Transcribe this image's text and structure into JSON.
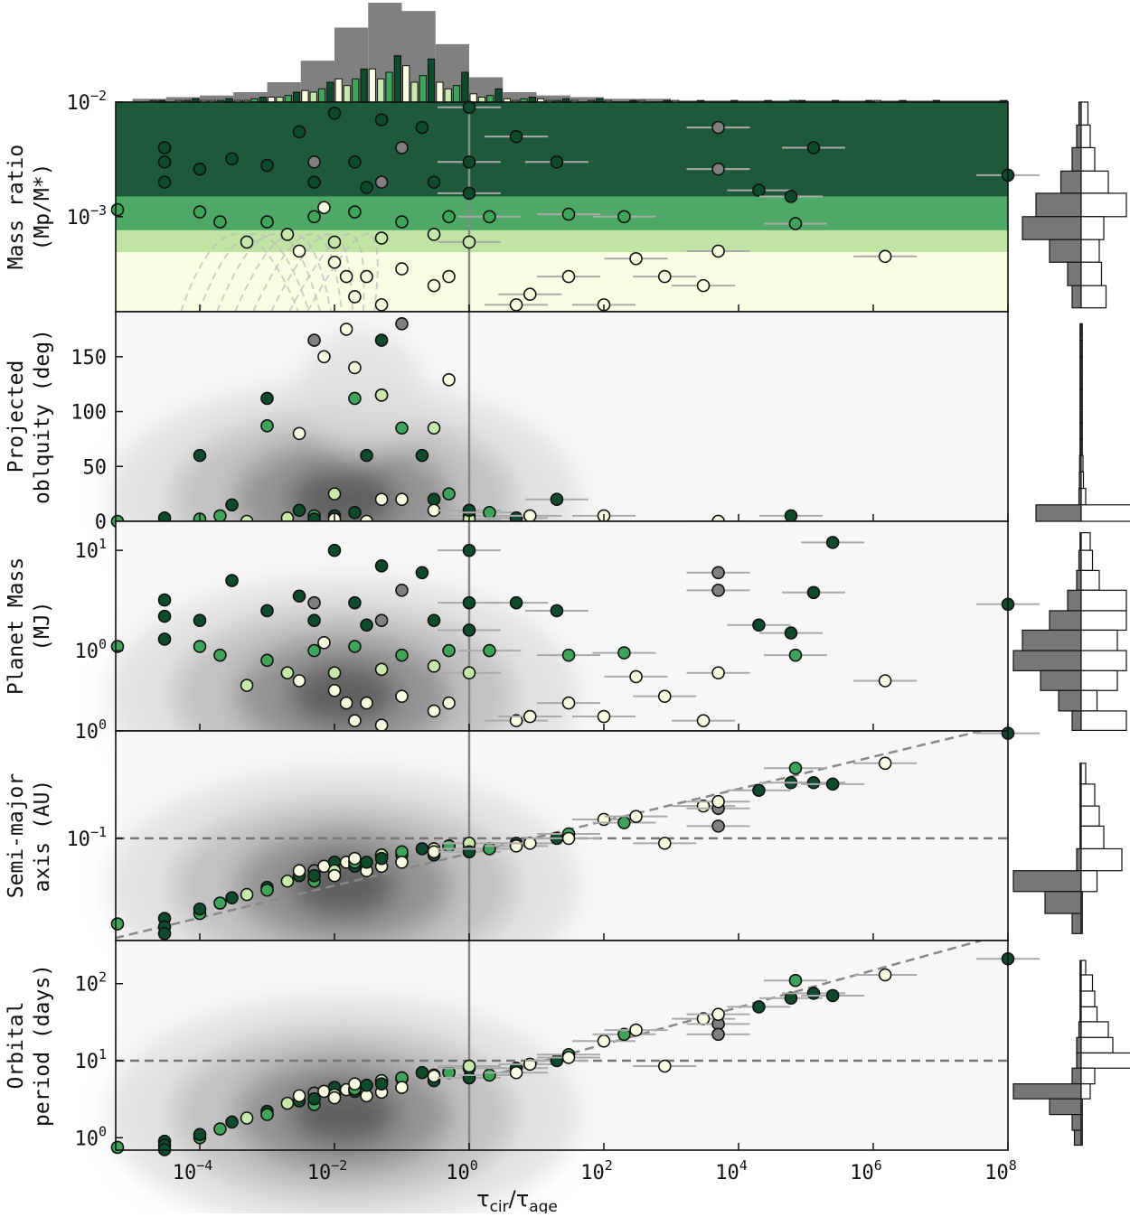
{
  "chart_data": {
    "type": "scatter",
    "x_axis": {
      "label": "τcir/τage",
      "label_main": "τ",
      "label_sub1": "cir",
      "label_mid": "/τ",
      "label_sub2": "age",
      "scale": "log",
      "range": [
        5.5e-06,
        100000000.0
      ],
      "ticks": [
        {
          "base": "10",
          "exp": "−4",
          "value": 0.0001
        },
        {
          "base": "10",
          "exp": "−2",
          "value": 0.01
        },
        {
          "base": "10",
          "exp": "0",
          "value": 1
        },
        {
          "base": "10",
          "exp": "2",
          "value": 100.0
        },
        {
          "base": "10",
          "exp": "4",
          "value": 10000.0
        },
        {
          "base": "10",
          "exp": "6",
          "value": 1000000.0
        },
        {
          "base": "10",
          "exp": "8",
          "value": 100000000.0
        }
      ]
    },
    "panels": [
      {
        "key": "q",
        "ylabel": [
          "Mass ratio",
          "(Mp/M*)"
        ],
        "scale": "log",
        "range": [
          0.000148,
          0.01
        ],
        "ticks": [
          {
            "base": "10",
            "exp": "−2",
            "value": 0.01
          },
          {
            "base": "10",
            "exp": "−3",
            "value": 0.001
          }
        ],
        "bands": [
          {
            "from": 0.0015,
            "to": 0.01,
            "color": "#1d5a3c"
          },
          {
            "from": 0.00076,
            "to": 0.0015,
            "color": "#4ea866"
          },
          {
            "from": 0.00049,
            "to": 0.00076,
            "color": "#bfe4a4"
          },
          {
            "from": 0.000148,
            "to": 0.00049,
            "color": "#fbfde2"
          }
        ]
      },
      {
        "key": "obl",
        "ylabel": [
          "Projected",
          "oblquity (deg)"
        ],
        "scale": "linear",
        "range": [
          0,
          191
        ],
        "ticks": [
          {
            "label": "150",
            "value": 150
          },
          {
            "label": "100",
            "value": 100
          },
          {
            "label": "50",
            "value": 50
          },
          {
            "label": "0",
            "value": 0
          }
        ]
      },
      {
        "key": "mass",
        "ylabel": [
          "Planet Mass",
          "(MJ)"
        ],
        "scale": "log",
        "range": [
          0.158,
          19.5
        ],
        "ticks": [
          {
            "base": "10",
            "exp": "1",
            "value": 10
          },
          {
            "base": "10",
            "exp": "0",
            "value": 1
          },
          {
            "base": "10",
            "exp": "0",
            "value": 0.158
          }
        ]
      },
      {
        "key": "a",
        "ylabel": [
          "Semi-major",
          "axis (AU)"
        ],
        "scale": "log",
        "range": [
          0.0112,
          1
        ],
        "ticks": [
          {
            "base": "10",
            "exp": "0",
            "value": 1
          },
          {
            "base": "10",
            "exp": "−1",
            "value": 0.1
          }
        ],
        "hline": 0.1,
        "trend": [
          [
            5.5e-06,
            0.0118
          ],
          [
            40000000.0,
            1
          ]
        ]
      },
      {
        "key": "P",
        "ylabel": [
          "Orbital",
          "period (days)"
        ],
        "scale": "log",
        "range": [
          0.69,
          363
        ],
        "ticks": [
          {
            "base": "10",
            "exp": "2",
            "value": 100
          },
          {
            "base": "10",
            "exp": "1",
            "value": 10
          },
          {
            "base": "10",
            "exp": "0",
            "value": 1
          }
        ],
        "hline": 10,
        "trend": [
          [
            3,
            7
          ],
          [
            40000000.0,
            363
          ]
        ]
      }
    ],
    "vline": 1,
    "group_colors": {
      "d": "#0e4a2c",
      "m": "#3ea45a",
      "l": "#c6e8aa",
      "c": "#fbfde2",
      "g": "#7f7f7f"
    },
    "columns": [
      "tau",
      "q",
      "obliquity",
      "mass_MJ",
      "a_AU",
      "period_days",
      "group"
    ],
    "points": [
      [
        6e-06,
        0.00115,
        0,
        1.1,
        0.016,
        0.75,
        "m"
      ],
      [
        3e-05,
        0.004,
        3,
        3.2,
        0.018,
        0.9,
        "d"
      ],
      [
        3e-05,
        0.003,
        null,
        2.2,
        0.015,
        0.8,
        "d"
      ],
      [
        3e-05,
        0.002,
        null,
        1.3,
        0.013,
        0.7,
        "d"
      ],
      [
        0.0001,
        0.0011,
        2,
        1.1,
        0.02,
        1.0,
        "m"
      ],
      [
        0.0001,
        0.0026,
        60,
        2.0,
        0.022,
        1.1,
        "d"
      ],
      [
        0.0002,
        0.0009,
        5,
        0.9,
        0.025,
        1.3,
        "m"
      ],
      [
        0.0003,
        0.0032,
        15,
        5.0,
        0.028,
        1.6,
        "d"
      ],
      [
        0.0005,
        0.0006,
        0,
        0.45,
        0.03,
        1.8,
        "l"
      ],
      [
        0.001,
        0.0028,
        112,
        2.5,
        0.035,
        2.2,
        "d"
      ],
      [
        0.001,
        0.0009,
        87,
        0.8,
        0.033,
        2.0,
        "m"
      ],
      [
        0.002,
        0.0007,
        3,
        0.6,
        0.04,
        2.8,
        "l"
      ],
      [
        0.003,
        0.0055,
        10,
        3.5,
        0.045,
        3.0,
        "d"
      ],
      [
        0.003,
        0.0005,
        80,
        0.5,
        0.05,
        3.5,
        "c"
      ],
      [
        0.005,
        0.003,
        165,
        3.0,
        0.05,
        3.8,
        "g"
      ],
      [
        0.005,
        0.001,
        5,
        1.0,
        0.04,
        2.7,
        "m"
      ],
      [
        0.005,
        0.002,
        2,
        2.0,
        0.045,
        3.2,
        "d"
      ],
      [
        0.007,
        0.0012,
        150,
        1.2,
        0.055,
        4.0,
        "c"
      ],
      [
        0.01,
        0.008,
        5,
        10,
        0.06,
        4.5,
        "d"
      ],
      [
        0.01,
        0.0006,
        25,
        0.6,
        0.05,
        3.6,
        "l"
      ],
      [
        0.01,
        0.0004,
        2,
        0.4,
        0.045,
        3.3,
        "c"
      ],
      [
        0.015,
        0.0003,
        175,
        0.3,
        0.06,
        4.2,
        "c"
      ],
      [
        0.02,
        0.003,
        8,
        3.0,
        0.055,
        4.0,
        "d"
      ],
      [
        0.02,
        0.0011,
        112,
        1.1,
        0.06,
        4.3,
        "m"
      ],
      [
        0.02,
        0.0002,
        140,
        0.2,
        0.065,
        5.0,
        "c"
      ],
      [
        0.03,
        0.0003,
        0,
        0.3,
        0.05,
        3.5,
        "c"
      ],
      [
        0.03,
        0.0018,
        60,
        1.8,
        0.06,
        4.8,
        "d"
      ],
      [
        0.05,
        0.002,
        115,
        2.0,
        0.07,
        5.5,
        "g"
      ],
      [
        0.05,
        0.00065,
        115,
        0.65,
        0.07,
        5.5,
        "l"
      ],
      [
        0.05,
        0.00017,
        20,
        0.18,
        0.055,
        3.9,
        "c"
      ],
      [
        0.05,
        0.007,
        165,
        7.0,
        0.065,
        5.0,
        "d"
      ],
      [
        0.1,
        0.004,
        180,
        4.0,
        0.07,
        5.8,
        "g"
      ],
      [
        0.1,
        0.0009,
        85,
        0.9,
        0.075,
        6.0,
        "m"
      ],
      [
        0.1,
        0.00035,
        20,
        0.35,
        0.06,
        4.5,
        "c"
      ],
      [
        0.2,
        0.006,
        60,
        6.0,
        0.08,
        7.0,
        "d"
      ],
      [
        0.3,
        0.002,
        20,
        2.0,
        0.07,
        5.5,
        "d"
      ],
      [
        0.3,
        0.0007,
        85,
        0.7,
        0.08,
        6.5,
        "l"
      ],
      [
        0.3,
        0.00025,
        10,
        0.25,
        0.075,
        6.3,
        "c"
      ],
      [
        0.5,
        0.0003,
        129,
        0.3,
        0.085,
        7.2,
        "c"
      ],
      [
        0.5,
        0.001,
        25,
        1.0,
        0.085,
        7.0,
        "m"
      ],
      [
        1,
        0.009,
        0,
        10,
        0.09,
        8.0,
        "d"
      ],
      [
        1,
        0.003,
        5,
        3.0,
        0.08,
        6.0,
        "d"
      ],
      [
        1,
        0.0006,
        2,
        0.6,
        0.09,
        8.5,
        "l"
      ],
      [
        1,
        0.0016,
        10,
        1.6,
        0.075,
        6.0,
        "d"
      ],
      [
        2,
        0.001,
        8,
        1.0,
        0.08,
        6.5,
        "m"
      ],
      [
        5,
        0.005,
        3,
        3.0,
        0.09,
        8.0,
        "d"
      ],
      [
        5,
        0.00017,
        null,
        0.2,
        0.085,
        7.0,
        "c"
      ],
      [
        8,
        0.00021,
        5,
        0.22,
        0.09,
        9.0,
        "c"
      ],
      [
        20,
        0.003,
        20,
        2.5,
        0.1,
        10,
        "d"
      ],
      [
        30,
        0.00105,
        null,
        0.9,
        0.11,
        12,
        "m"
      ],
      [
        30,
        0.0003,
        null,
        0.3,
        0.1,
        11,
        "c"
      ],
      [
        100,
        0.00017,
        5,
        0.22,
        0.15,
        18,
        "c"
      ],
      [
        200,
        0.001,
        null,
        0.95,
        0.14,
        22,
        "m"
      ],
      [
        300,
        0.00043,
        null,
        0.55,
        0.16,
        25,
        "c"
      ],
      [
        800,
        0.0003,
        null,
        0.35,
        0.09,
        8.5,
        "c"
      ],
      [
        3000,
        0.00025,
        null,
        0.2,
        0.2,
        35,
        "c"
      ],
      [
        5000,
        0.006,
        null,
        6.0,
        0.19,
        30,
        "g"
      ],
      [
        5000,
        0.0026,
        0,
        4.0,
        0.13,
        22,
        "g"
      ],
      [
        5000,
        0.0005,
        0,
        0.6,
        0.22,
        40,
        "c"
      ],
      [
        20000.0,
        0.0017,
        null,
        1.8,
        0.28,
        50,
        "d"
      ],
      [
        60000.0,
        0.0015,
        5,
        1.5,
        0.33,
        65,
        "d"
      ],
      [
        70000.0,
        0.00087,
        null,
        0.9,
        0.45,
        110,
        "m"
      ],
      [
        130000.0,
        0.004,
        null,
        3.8,
        0.33,
        75,
        "d"
      ],
      [
        250000.0,
        null,
        null,
        12,
        0.32,
        70,
        "d"
      ],
      [
        1500000.0,
        0.00045,
        null,
        0.5,
        0.5,
        130,
        "c"
      ],
      [
        100000000.0,
        0.0023,
        null,
        2.9,
        0.95,
        210,
        "d"
      ]
    ],
    "top_histogram": {
      "bin_edges_log10_tau": [
        -5,
        -4.5,
        -4,
        -3.5,
        -3,
        -2.5,
        -2,
        -1.5,
        -1,
        -0.5,
        0,
        0.5,
        1,
        1.5,
        2,
        2.5,
        3,
        3.5,
        4,
        4.5,
        5,
        5.5,
        6,
        6.5,
        7,
        7.5,
        8
      ],
      "all": [
        2,
        3,
        4,
        6,
        12,
        25,
        45,
        60,
        55,
        35,
        15,
        6,
        4,
        3,
        2,
        2,
        1,
        1,
        1,
        1,
        1,
        1,
        1,
        1,
        1,
        1
      ],
      "series": [
        {
          "group": "c",
          "values": [
            0,
            0,
            1,
            1,
            3,
            7,
            14,
            20,
            22,
            12,
            5,
            2,
            2,
            1,
            1,
            1,
            1,
            0,
            0,
            0,
            0,
            0,
            1,
            0,
            0,
            0
          ]
        },
        {
          "group": "l",
          "values": [
            0,
            1,
            1,
            1,
            3,
            6,
            10,
            14,
            12,
            8,
            3,
            1,
            1,
            0,
            0,
            0,
            0,
            0,
            0,
            0,
            0,
            0,
            0,
            0,
            0,
            0
          ]
        },
        {
          "group": "m",
          "values": [
            1,
            1,
            1,
            2,
            4,
            8,
            14,
            18,
            16,
            10,
            4,
            2,
            1,
            1,
            0,
            0,
            0,
            0,
            0,
            1,
            0,
            0,
            0,
            0,
            0,
            0
          ]
        },
        {
          "group": "d",
          "values": [
            1,
            2,
            2,
            3,
            6,
            12,
            20,
            28,
            26,
            18,
            8,
            3,
            2,
            2,
            1,
            1,
            1,
            1,
            1,
            1,
            1,
            1,
            1,
            1,
            0,
            1
          ]
        }
      ]
    },
    "side_histograms": [
      {
        "edges": [
          0.01,
          0.0063,
          0.004,
          0.0025,
          0.0016,
          0.001,
          0.00063,
          0.0004,
          0.00025,
          0.00016
        ],
        "left": [
          1,
          2,
          4,
          9,
          20,
          26,
          14,
          6,
          4
        ],
        "right": [
          3,
          4,
          6,
          12,
          20,
          10,
          8,
          9,
          11
        ]
      },
      {
        "edges": [
          180,
          165,
          150,
          135,
          120,
          105,
          90,
          75,
          60,
          45,
          30,
          15,
          0
        ],
        "left": [
          0.5,
          0.5,
          0.5,
          0.5,
          0.5,
          0.5,
          0.5,
          0.5,
          0.7,
          0.8,
          1,
          20
        ],
        "right": [
          0.5,
          0.5,
          0.5,
          0.5,
          0.5,
          0.5,
          0.5,
          0.5,
          0.8,
          1,
          2,
          30
        ]
      },
      {
        "edges": [
          15,
          10,
          6.3,
          4,
          2.5,
          1.6,
          1,
          0.63,
          0.4,
          0.25,
          0.16
        ],
        "left": [
          0.5,
          1,
          2,
          6,
          14,
          26,
          30,
          18,
          10,
          4
        ],
        "right": [
          4,
          5,
          8,
          20,
          20,
          16,
          20,
          16,
          7,
          20
        ]
      },
      {
        "edges": [
          0.5,
          0.32,
          0.2,
          0.13,
          0.08,
          0.05,
          0.032,
          0.02,
          0.013
        ],
        "left": [
          0.5,
          0.5,
          0.5,
          0.5,
          2,
          30,
          16,
          4
        ],
        "right": [
          2,
          6,
          8,
          10,
          18,
          7,
          0.5,
          0.5
        ]
      },
      {
        "edges": [
          200,
          130,
          80,
          50,
          32,
          20,
          12.6,
          8,
          5,
          3.2,
          2,
          1.25,
          0.8
        ],
        "left": [
          0.5,
          0.5,
          0.5,
          0.5,
          1,
          2,
          2,
          4,
          30,
          14,
          4,
          3
        ],
        "right": [
          2,
          5,
          6,
          7,
          12,
          14,
          22,
          6,
          4,
          0.5,
          0.5,
          0.5
        ]
      }
    ]
  }
}
